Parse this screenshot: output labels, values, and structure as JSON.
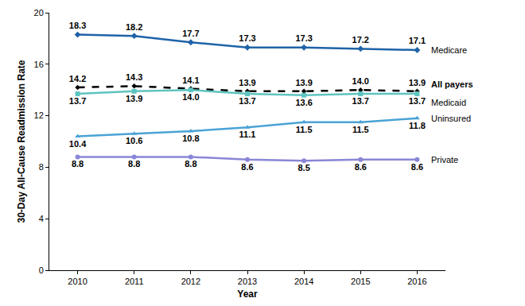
{
  "chart_data": {
    "type": "line",
    "x_label": "Year",
    "y_label": "30-Day All-Cause Readmission Rate",
    "categories": [
      "2010",
      "2011",
      "2012",
      "2013",
      "2014",
      "2015",
      "2016"
    ],
    "ylim": [
      0,
      20
    ],
    "yticks": [
      0,
      4,
      8,
      12,
      16,
      20
    ],
    "grid": false,
    "data_labels": true,
    "series": [
      {
        "name": "Medicare",
        "color": "#1f63a8",
        "marker": "diamond",
        "line_style": "solid",
        "values": [
          18.3,
          18.2,
          17.7,
          17.3,
          17.3,
          17.2,
          17.1
        ],
        "value_labels": [
          "18.3",
          "18.2",
          "17.7",
          "17.3",
          "17.3",
          "17.2",
          "17.1"
        ]
      },
      {
        "name": "All payers",
        "color": "#000000",
        "marker": "diamond",
        "line_style": "dash",
        "values": [
          14.2,
          14.3,
          14.1,
          13.9,
          13.9,
          14.0,
          13.9
        ],
        "value_labels": [
          "14.2",
          "14.3",
          "14.1",
          "13.9",
          "13.9",
          "14.0",
          "13.9"
        ]
      },
      {
        "name": "Medicaid",
        "color": "#5ec4c0",
        "marker": "square",
        "line_style": "solid",
        "values": [
          13.7,
          13.9,
          14.0,
          13.7,
          13.6,
          13.7,
          13.7
        ],
        "value_labels": [
          "13.7",
          "13.9",
          "14.0",
          "13.7",
          "13.6",
          "13.7",
          "13.7"
        ]
      },
      {
        "name": "Uninsured",
        "color": "#4ba3d6",
        "marker": "triangle-up",
        "line_style": "solid",
        "values": [
          10.4,
          10.6,
          10.8,
          11.1,
          11.5,
          11.5,
          11.8
        ],
        "value_labels": [
          "10.4",
          "10.6",
          "10.8",
          "11.1",
          "11.5",
          "11.5",
          "11.8"
        ]
      },
      {
        "name": "Private",
        "color": "#8a86d6",
        "marker": "circle",
        "line_style": "solid",
        "values": [
          8.8,
          8.8,
          8.8,
          8.6,
          8.5,
          8.6,
          8.6
        ],
        "value_labels": [
          "8.8",
          "8.8",
          "8.8",
          "8.6",
          "8.5",
          "8.6",
          "8.6"
        ]
      }
    ]
  }
}
